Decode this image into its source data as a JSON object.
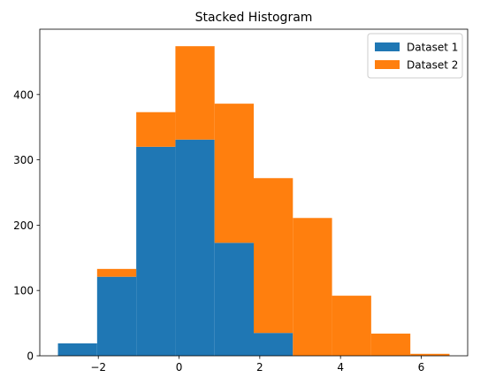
{
  "chart_data": {
    "type": "bar",
    "stacked": true,
    "histogram": true,
    "title": "Stacked Histogram",
    "xlabel": "",
    "ylabel": "",
    "bin_edges": [
      -3.0,
      -2.03,
      -1.06,
      -0.09,
      0.88,
      1.85,
      2.82,
      3.79,
      4.76,
      5.73,
      6.7
    ],
    "xlim": [
      -3.45,
      7.15
    ],
    "ylim": [
      0,
      500
    ],
    "xticks": [
      -2,
      0,
      2,
      4,
      6
    ],
    "yticks": [
      0,
      100,
      200,
      300,
      400
    ],
    "xtick_labels": [
      "−2",
      "0",
      "2",
      "4",
      "6"
    ],
    "ytick_labels": [
      "0",
      "100",
      "200",
      "300",
      "400"
    ],
    "series": [
      {
        "name": "Dataset 1",
        "color": "#1f77b4",
        "values": [
          19,
          121,
          320,
          331,
          173,
          35,
          0,
          0,
          0,
          0
        ]
      },
      {
        "name": "Dataset 2",
        "color": "#ff7f0e",
        "values": [
          0,
          12,
          53,
          143,
          213,
          237,
          211,
          92,
          34,
          3
        ]
      }
    ],
    "legend_position": "top-right",
    "grid": false
  }
}
